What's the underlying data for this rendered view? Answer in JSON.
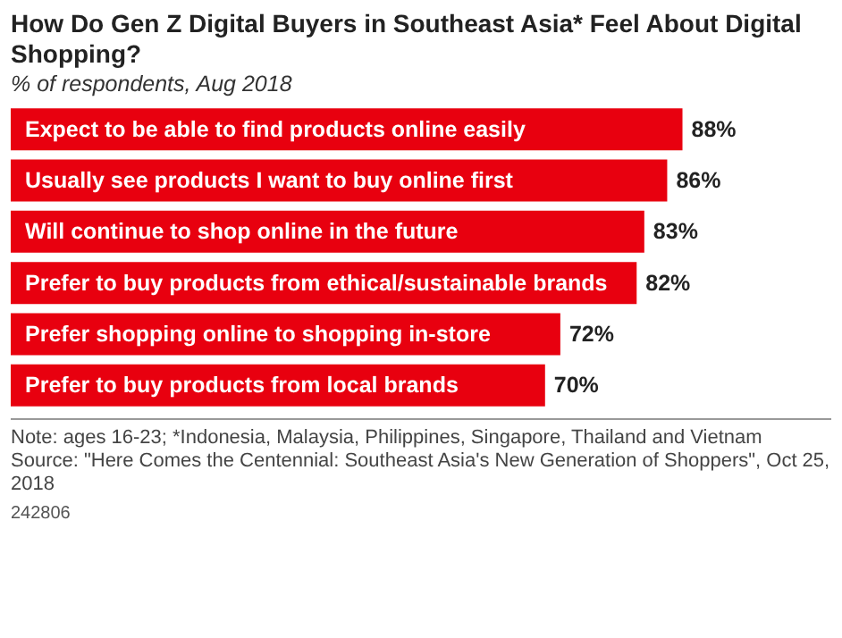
{
  "chart_data": {
    "type": "bar",
    "orientation": "horizontal",
    "title": "How Do Gen Z Digital Buyers in Southeast Asia* Feel About Digital Shopping?",
    "subtitle": "% of respondents, Aug 2018",
    "categories": [
      "Expect to be able to find products online easily",
      "Usually see products I want to buy online first",
      "Will continue to shop online in the future",
      "Prefer to buy products from ethical/sustainable brands",
      "Prefer shopping online to shopping in-store",
      "Prefer to buy products from local brands"
    ],
    "values": [
      88,
      86,
      83,
      82,
      72,
      70
    ],
    "value_labels": [
      "88%",
      "86%",
      "83%",
      "82%",
      "72%",
      "70%"
    ],
    "color": "#e8000f",
    "grid": false,
    "annotations": [
      "Note: ages 16-23; *Indonesia, Malaysia, Philippines, Singapore, Thailand and Vietnam",
      "Source: \"Here Comes the Centennial: Southeast Asia's New Generation of Shoppers\", Oct 25, 2018",
      "242806"
    ]
  }
}
